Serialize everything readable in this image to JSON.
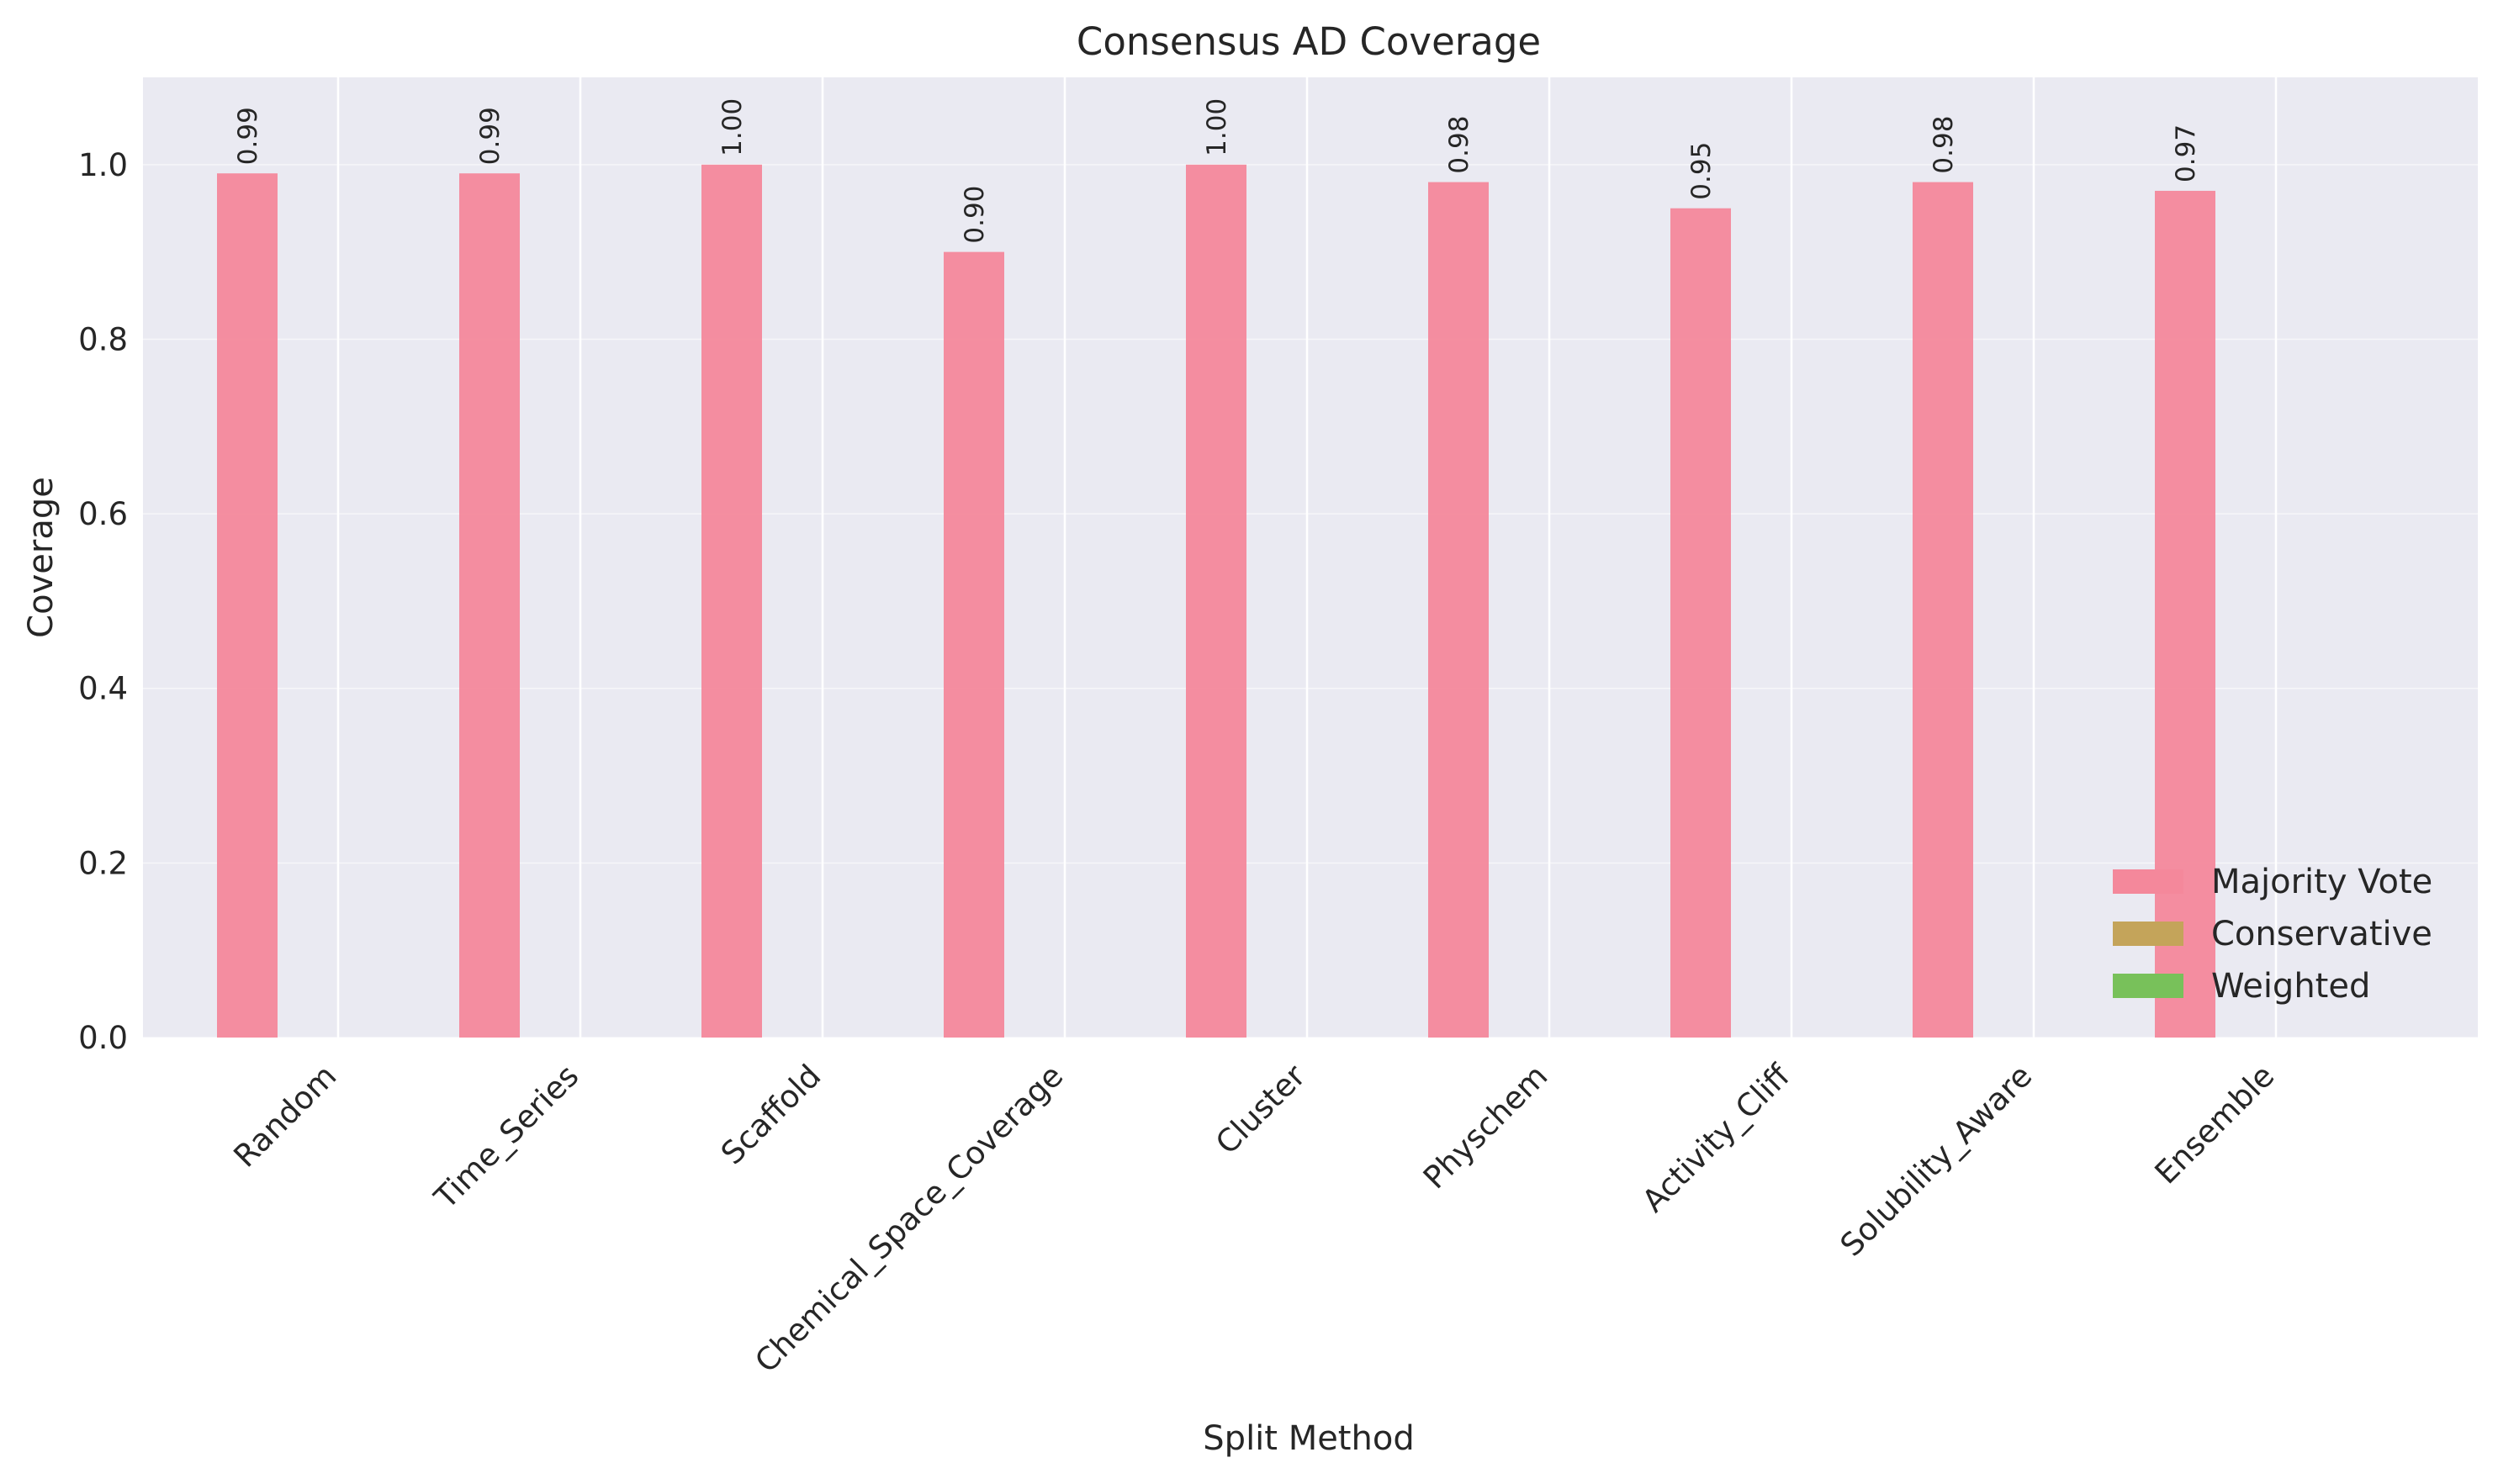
{
  "chart_data": {
    "type": "bar",
    "title": "Consensus AD Coverage",
    "xlabel": "Split Method",
    "ylabel": "Coverage",
    "categories": [
      "Random",
      "Time_Series",
      "Scaffold",
      "Chemical_Space_Coverage",
      "Cluster",
      "Physchem",
      "Activity_Cliff",
      "Solubility_Aware",
      "Ensemble"
    ],
    "series": [
      {
        "name": "Majority Vote",
        "color": "#f4889b",
        "values": [
          0.99,
          0.99,
          1.0,
          0.9,
          1.0,
          0.98,
          0.95,
          0.98,
          0.97
        ],
        "labels": [
          "0.99",
          "0.99",
          "1.00",
          "0.90",
          "1.00",
          "0.98",
          "0.95",
          "0.98",
          "0.97"
        ]
      },
      {
        "name": "Conservative",
        "color": "#c4a45a",
        "values": [
          0,
          0,
          0,
          0,
          0,
          0,
          0,
          0,
          0
        ]
      },
      {
        "name": "Weighted",
        "color": "#78c15a",
        "values": [
          0,
          0,
          0,
          0,
          0,
          0,
          0,
          0,
          0
        ]
      }
    ],
    "ylim": [
      0,
      1.1
    ],
    "yticks": [
      "0.0",
      "0.2",
      "0.4",
      "0.6",
      "0.8",
      "1.0"
    ],
    "grid": true,
    "legend_position": "bottom-right",
    "plot_background": "#eaeaf2"
  }
}
